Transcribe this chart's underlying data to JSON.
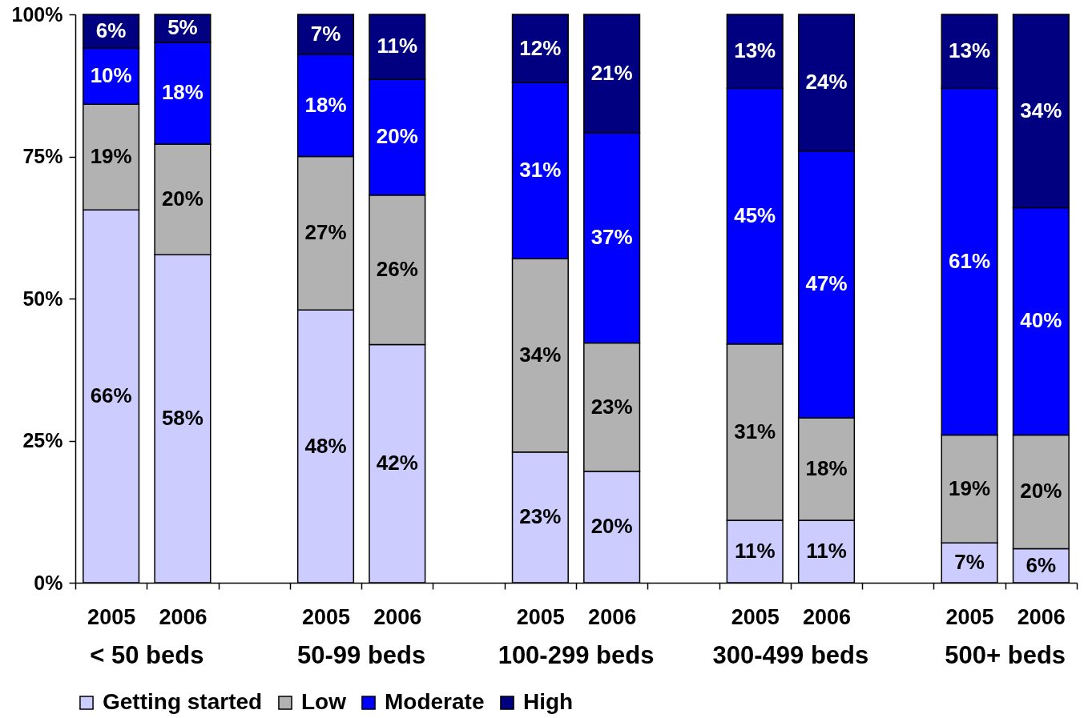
{
  "chart_data": {
    "type": "bar",
    "stacked": true,
    "categories": [
      "2005",
      "2006",
      null,
      "2005",
      "2006",
      null,
      "2005",
      "2006",
      null,
      "2005",
      "2006",
      null,
      "2005",
      "2006"
    ],
    "annotations": [
      "< 50 beds",
      "50-99 beds",
      "100-299 beds",
      "300-499 beds",
      "500+ beds"
    ],
    "series": [
      {
        "name": "Getting started",
        "color": "#ccccff",
        "values": [
          65.6,
          57.7,
          null,
          48,
          41.9,
          null,
          23,
          19.6,
          null,
          11,
          11,
          null,
          7,
          6
        ],
        "value_labels": [
          "66%",
          "58%",
          null,
          "48%",
          "42%",
          null,
          "23%",
          "20%",
          null,
          "11%",
          "11%",
          null,
          "7%",
          "6%"
        ]
      },
      {
        "name": "Low",
        "color": "#b2b2b2",
        "values": [
          18.6,
          19.5,
          null,
          27,
          26.3,
          null,
          34,
          22.6,
          null,
          31,
          18,
          null,
          19,
          20
        ],
        "value_labels": [
          "19%",
          "20%",
          null,
          "27%",
          "26%",
          null,
          "34%",
          "23%",
          null,
          "31%",
          "18%",
          null,
          "19%",
          "20%"
        ]
      },
      {
        "name": "Moderate",
        "color": "#0000ff",
        "values": [
          9.9,
          17.9,
          null,
          18,
          20.4,
          null,
          31,
          37.0,
          null,
          45,
          47,
          null,
          61,
          40
        ],
        "value_labels": [
          "10%",
          "18%",
          null,
          "18%",
          "20%",
          null,
          "31%",
          "37%",
          null,
          "45%",
          "47%",
          null,
          "61%",
          "40%"
        ]
      },
      {
        "name": "High",
        "color": "#000080",
        "values": [
          5.9,
          4.9,
          null,
          7,
          11.4,
          null,
          12,
          20.8,
          null,
          13,
          24,
          null,
          13,
          34
        ],
        "value_labels": [
          "6%",
          "5%",
          null,
          "7%",
          "11%",
          null,
          "12%",
          "21%",
          null,
          "13%",
          "24%",
          null,
          "13%",
          "34%"
        ]
      }
    ],
    "ylim": [
      0,
      100
    ],
    "yticks": [
      {
        "value": 0,
        "label": "0%"
      },
      {
        "value": 25,
        "label": "25%"
      },
      {
        "value": 50,
        "label": "50%"
      },
      {
        "value": 75,
        "label": "75%"
      },
      {
        "value": 100,
        "label": "100%"
      }
    ],
    "legend": "bottom"
  }
}
